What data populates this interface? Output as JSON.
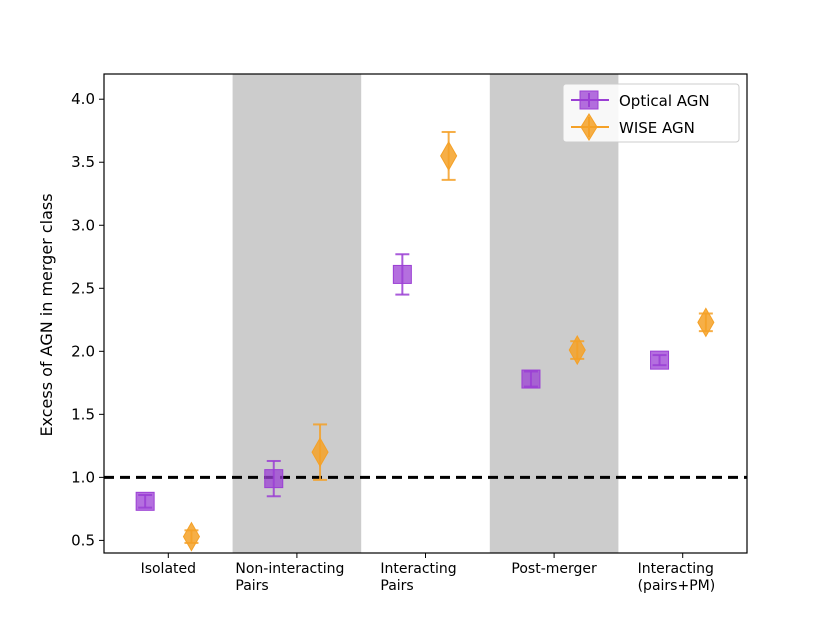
{
  "chart_data": {
    "type": "scatter",
    "title": "",
    "xlabel": "",
    "ylabel": "Excess of AGN in merger class",
    "categories": [
      [
        "Isolated"
      ],
      [
        "Non-interacting",
        "Pairs"
      ],
      [
        "Interacting",
        "Pairs"
      ],
      [
        "Post-merger"
      ],
      [
        "Interacting",
        "(pairs+PM)"
      ]
    ],
    "ylim": [
      0.4,
      4.2
    ],
    "yticks": [
      "0.5",
      "1.0",
      "1.5",
      "2.0",
      "2.5",
      "3.0",
      "3.5",
      "4.0"
    ],
    "shaded_categories": [
      1,
      3
    ],
    "reference_line": {
      "y": 1.0,
      "style": "dashed"
    },
    "legend_position": "top-right",
    "series": [
      {
        "name": "Optical AGN",
        "marker": "square",
        "color": "#9b3fd4",
        "values": [
          0.81,
          0.99,
          2.61,
          1.78,
          1.93
        ],
        "err_low": [
          0.05,
          0.14,
          0.16,
          0.06,
          0.04
        ],
        "err_high": [
          0.05,
          0.14,
          0.16,
          0.06,
          0.04
        ]
      },
      {
        "name": "WISE AGN",
        "marker": "diamond",
        "color": "#f5a127",
        "values": [
          0.53,
          1.2,
          3.55,
          2.01,
          2.23
        ],
        "err_low": [
          0.05,
          0.22,
          0.19,
          0.07,
          0.07
        ],
        "err_high": [
          0.05,
          0.22,
          0.19,
          0.07,
          0.07
        ]
      }
    ]
  }
}
